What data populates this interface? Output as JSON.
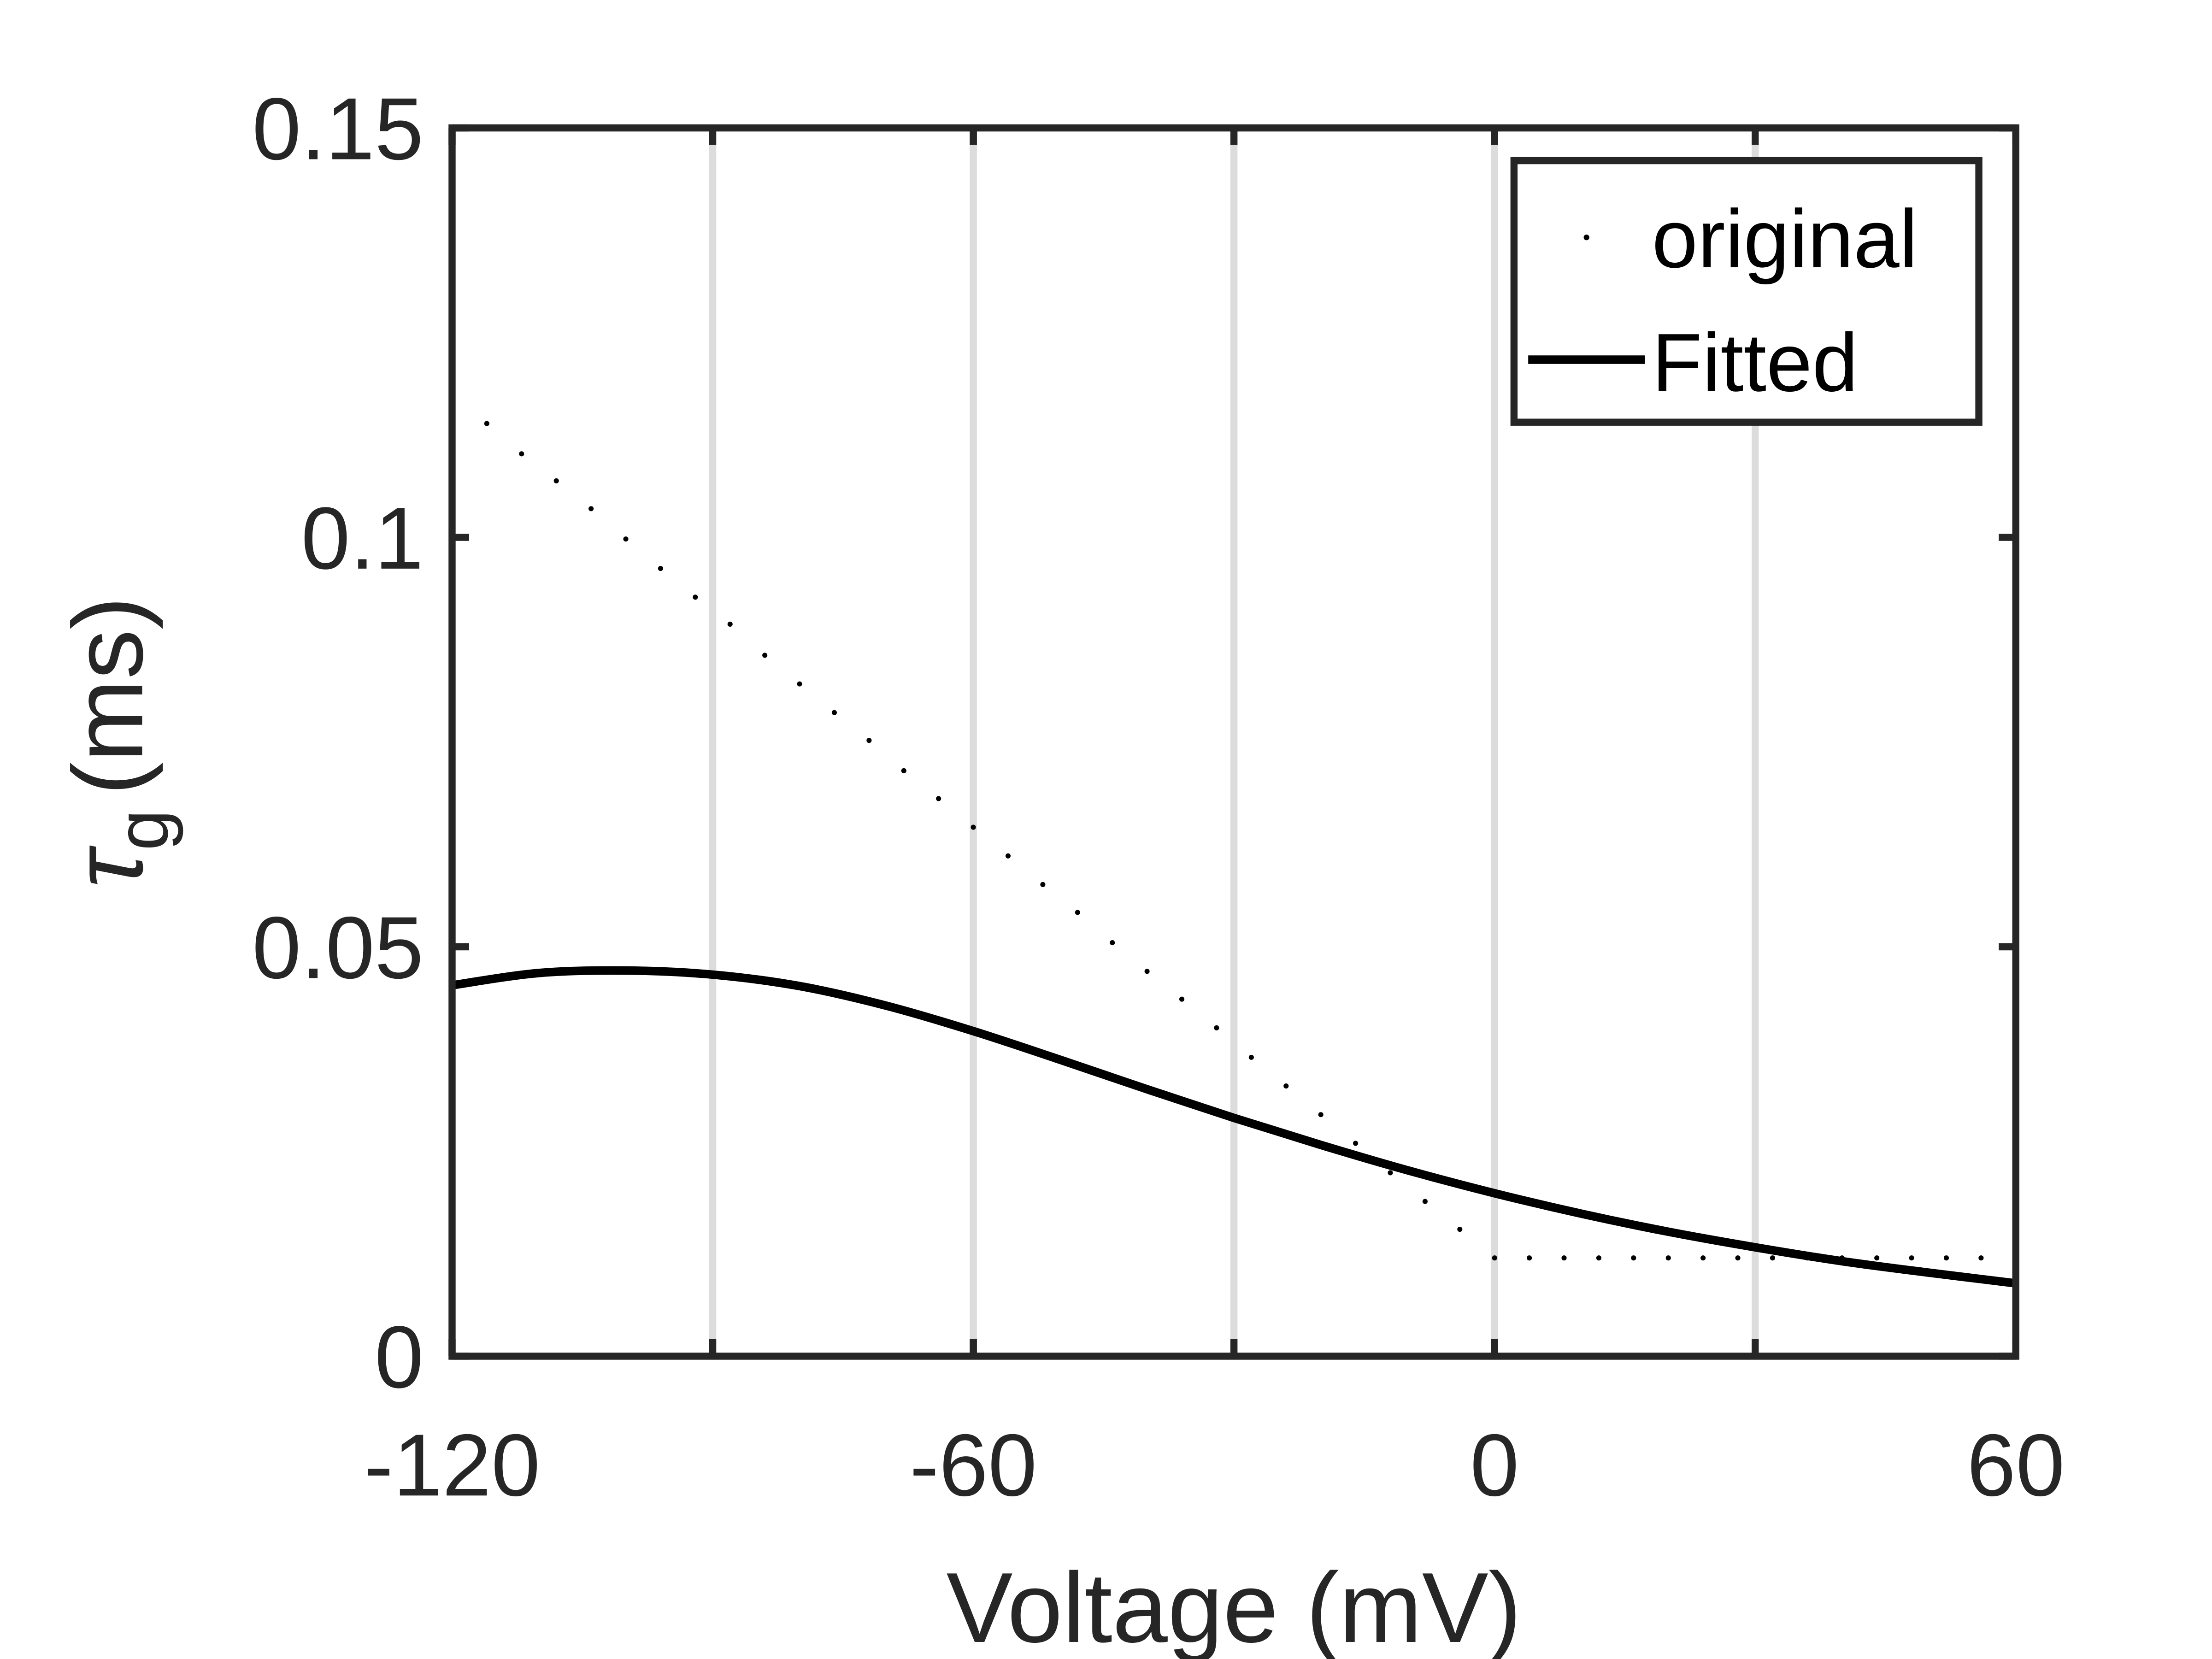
{
  "chart_data": {
    "type": "line",
    "title": "",
    "xlabel": "Voltage (mV)",
    "ylabel_symbol": "τ",
    "ylabel_subscript": "g",
    "ylabel_unit": "(ms)",
    "xlim": [
      -120,
      60
    ],
    "ylim": [
      0,
      0.15
    ],
    "xticks": [
      -120,
      -60,
      0,
      60
    ],
    "xtick_labels": [
      "-120",
      "-60",
      "0",
      "60"
    ],
    "yticks": [
      0,
      0.05,
      0.1,
      0.15
    ],
    "ytick_labels": [
      "0",
      "0.05",
      "0.1",
      "0.15"
    ],
    "grid_x": [
      -90,
      -60,
      -30,
      0,
      30
    ],
    "legend_position": "top-right",
    "series": [
      {
        "name": "original",
        "style": "dotted-markers",
        "color": "#000000",
        "x": [
          -120,
          -116,
          -112,
          -108,
          -104,
          -100,
          -96,
          -92,
          -88,
          -84,
          -80,
          -76,
          -72,
          -68,
          -64,
          -60,
          -56,
          -52,
          -48,
          -44,
          -40,
          -36,
          -32,
          -28,
          -24,
          -20,
          -16,
          -12,
          -8,
          -4,
          0,
          4,
          8,
          12,
          16,
          20,
          24,
          28,
          32,
          36,
          40,
          44,
          48,
          52,
          56,
          60
        ],
        "y": [
          0.1175,
          0.1139,
          0.1102,
          0.1069,
          0.1035,
          0.0998,
          0.0962,
          0.0927,
          0.0894,
          0.0856,
          0.0821,
          0.0786,
          0.0752,
          0.0715,
          0.0681,
          0.0646,
          0.0611,
          0.0576,
          0.0542,
          0.0505,
          0.047,
          0.0436,
          0.0401,
          0.0365,
          0.033,
          0.0295,
          0.026,
          0.0224,
          0.0189,
          0.0155,
          0.012,
          0.012,
          0.012,
          0.012,
          0.012,
          0.012,
          0.012,
          0.012,
          0.012,
          0.012,
          0.012,
          0.012,
          0.012,
          0.012,
          0.012,
          0.012
        ]
      },
      {
        "name": "Fitted",
        "style": "solid",
        "color": "#000000",
        "x": [
          -120,
          -110,
          -100,
          -90,
          -80,
          -70,
          -60,
          -50,
          -40,
          -30,
          -20,
          -10,
          0,
          10,
          20,
          30,
          40,
          50,
          60
        ],
        "y": [
          0.0453,
          0.0468,
          0.0471,
          0.0466,
          0.0452,
          0.0428,
          0.0397,
          0.0362,
          0.0326,
          0.0291,
          0.0258,
          0.0227,
          0.0199,
          0.0174,
          0.0152,
          0.0133,
          0.0116,
          0.0102,
          0.0089
        ]
      }
    ]
  }
}
